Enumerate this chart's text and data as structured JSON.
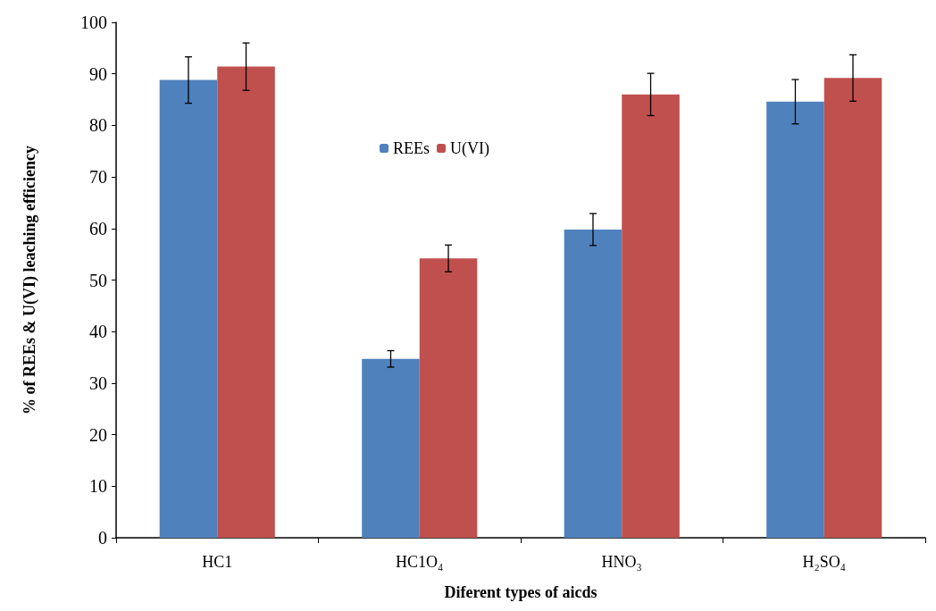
{
  "chart_data": {
    "type": "bar",
    "xlabel": "Diferent types of aicds",
    "ylabel": "% of REEs & U(VI) leaching efficiency",
    "categories": [
      "HC1",
      "HC1O₄",
      "HNO₃",
      "H₂SO₄"
    ],
    "series": [
      {
        "name": "REEs",
        "color": "#4f81bd",
        "values": [
          88.8,
          34.7,
          59.8,
          84.6
        ],
        "errors": [
          4.5,
          1.6,
          3.1,
          4.3
        ]
      },
      {
        "name": "U(VI)",
        "color": "#c0504d",
        "values": [
          91.4,
          54.2,
          86,
          89.2
        ],
        "errors": [
          4.6,
          2.6,
          4.1,
          4.5
        ]
      }
    ],
    "ylim": [
      0,
      100
    ],
    "yticks": [
      0,
      10,
      20,
      30,
      40,
      50,
      60,
      70,
      80,
      90,
      100
    ],
    "grid": false,
    "legend": "top"
  }
}
